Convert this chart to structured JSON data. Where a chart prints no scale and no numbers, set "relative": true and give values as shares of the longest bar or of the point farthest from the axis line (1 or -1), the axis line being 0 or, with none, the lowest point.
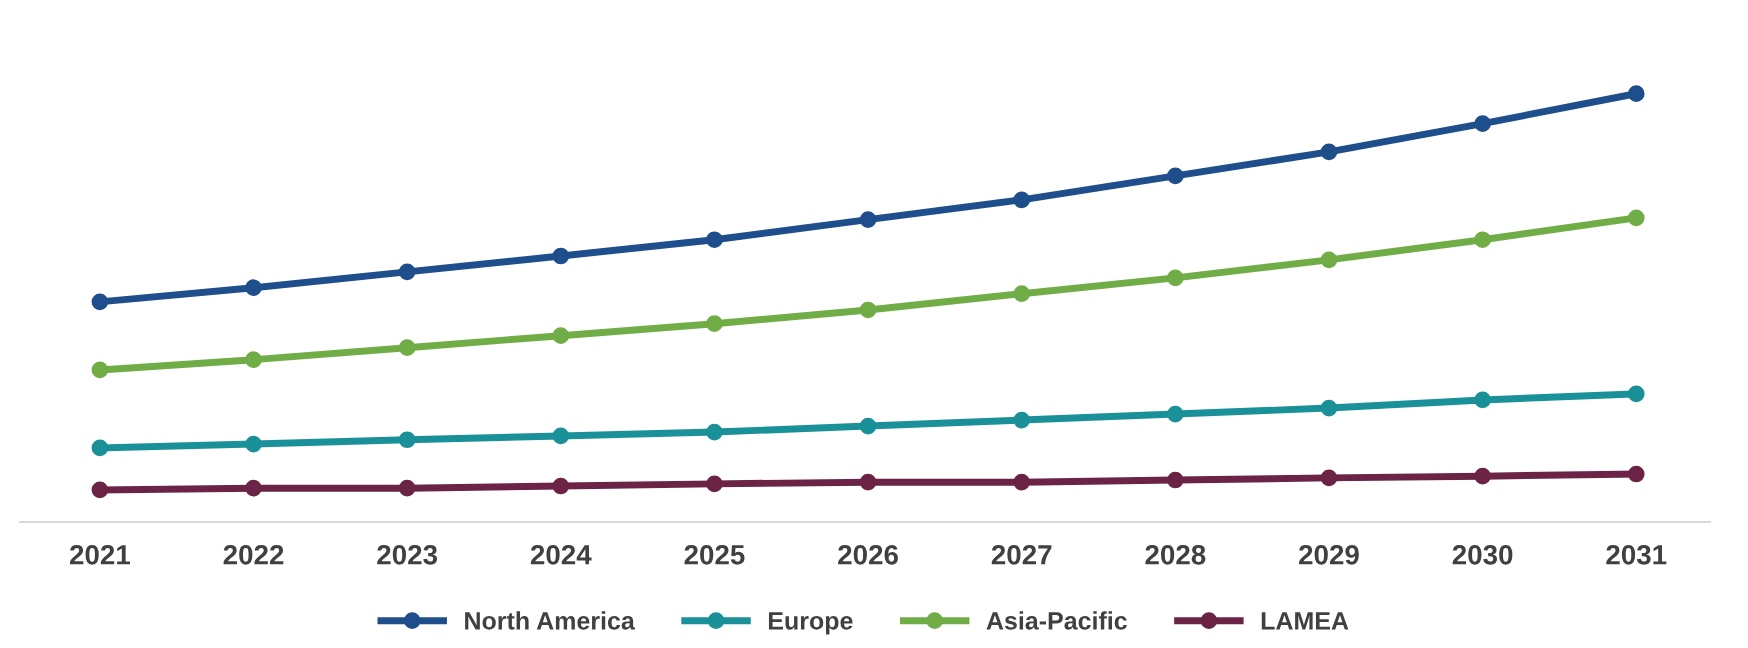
{
  "chart_data": {
    "type": "line",
    "relative": true,
    "marker": "circle",
    "line_style": "solid",
    "legend": "bottom",
    "grid": false,
    "categories": [
      "2021",
      "2022",
      "2023",
      "2024",
      "2025",
      "2026",
      "2027",
      "2028",
      "2029",
      "2030",
      "2031"
    ],
    "series": [
      {
        "name": "North America",
        "color": "#1f4e8c",
        "values": [
          0.514,
          0.547,
          0.584,
          0.621,
          0.659,
          0.706,
          0.752,
          0.808,
          0.864,
          0.93,
          1
        ]
      },
      {
        "name": "Europe",
        "color": "#1a9099",
        "values": [
          0.173,
          0.182,
          0.192,
          0.201,
          0.21,
          0.224,
          0.238,
          0.252,
          0.266,
          0.285,
          0.299
        ]
      },
      {
        "name": "Asia-Pacific",
        "color": "#70ad47",
        "values": [
          0.355,
          0.379,
          0.407,
          0.435,
          0.463,
          0.495,
          0.533,
          0.57,
          0.612,
          0.659,
          0.71
        ]
      },
      {
        "name": "LAMEA",
        "color": "#6b2346",
        "values": [
          0.075,
          0.079,
          0.079,
          0.084,
          0.089,
          0.093,
          0.093,
          0.098,
          0.103,
          0.107,
          0.112
        ]
      }
    ]
  }
}
